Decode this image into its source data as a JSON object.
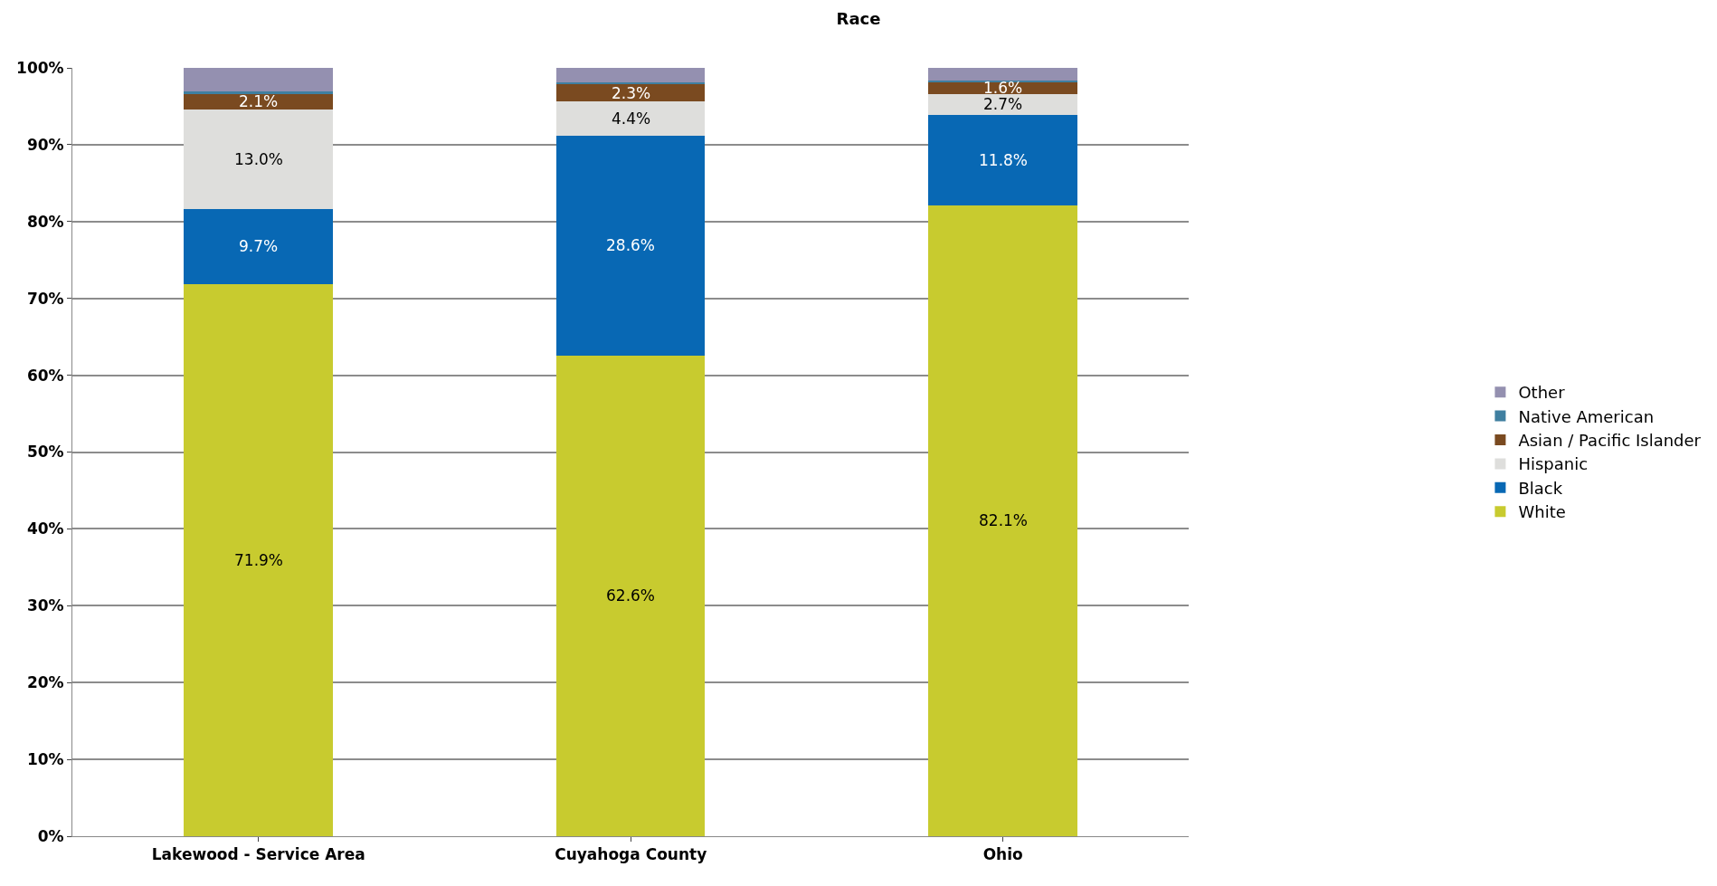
{
  "chart_data": {
    "type": "bar",
    "title": "Race",
    "stacked": true,
    "categories": [
      "Lakewood - Service Area",
      "Cuyahoga County",
      "Ohio"
    ],
    "series": [
      {
        "name": "White",
        "color": "#c8cb2f",
        "values": [
          71.9,
          62.6,
          82.1
        ],
        "value_labels": [
          "71.9%",
          "62.6%",
          "82.1%"
        ]
      },
      {
        "name": "Black",
        "color": "#0868b4",
        "values": [
          9.7,
          28.6,
          11.8
        ],
        "value_labels": [
          "9.7%",
          "28.6%",
          "11.8%"
        ]
      },
      {
        "name": "Hispanic",
        "color": "#dededc",
        "values": [
          13.0,
          4.4,
          2.7
        ],
        "value_labels": [
          "13.0%",
          "4.4%",
          "2.7%"
        ]
      },
      {
        "name": "Asian / Pacific Islander",
        "color": "#7a4a20",
        "values": [
          2.1,
          2.3,
          1.6
        ],
        "value_labels": [
          "2.1%",
          "2.3%",
          "1.6%"
        ]
      },
      {
        "name": "Native American",
        "color": "#3f7fa0",
        "values": [
          0.2,
          0.2,
          0.2
        ]
      },
      {
        "name": "Other",
        "color": "#9490b0",
        "values": [
          3.1,
          1.9,
          1.6
        ]
      }
    ],
    "ylim": [
      0,
      100
    ],
    "yticks": [
      {
        "value": 0,
        "label": "0%"
      },
      {
        "value": 10,
        "label": "10%"
      },
      {
        "value": 20,
        "label": "20%"
      },
      {
        "value": 30,
        "label": "30%"
      },
      {
        "value": 40,
        "label": "40%"
      },
      {
        "value": 50,
        "label": "50%"
      },
      {
        "value": 60,
        "label": "60%"
      },
      {
        "value": 70,
        "label": "70%"
      },
      {
        "value": 80,
        "label": "80%"
      },
      {
        "value": 90,
        "label": "90%"
      },
      {
        "value": 100,
        "label": "100%"
      }
    ],
    "grid": "y",
    "legend": "right"
  }
}
